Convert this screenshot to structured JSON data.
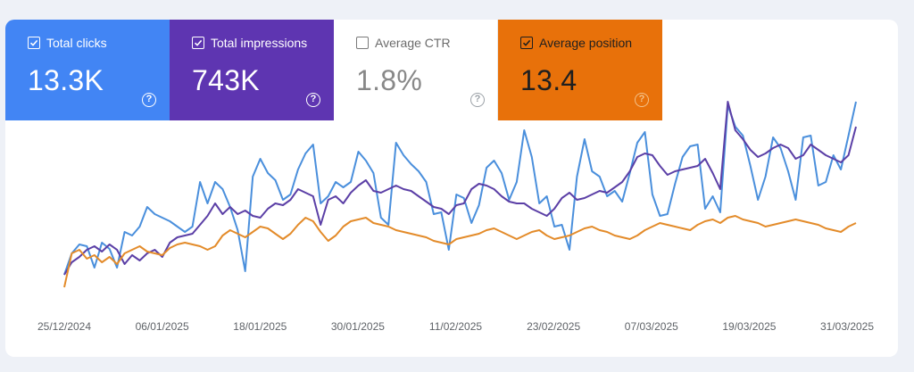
{
  "metrics": [
    {
      "label": "Total clicks",
      "value": "13.3K",
      "checked": true,
      "color": "#4285f4"
    },
    {
      "label": "Total impressions",
      "value": "743K",
      "checked": true,
      "color": "#5e35b1"
    },
    {
      "label": "Average CTR",
      "value": "1.8%",
      "checked": false,
      "color": "#ffffff"
    },
    {
      "label": "Average position",
      "value": "13.4",
      "checked": true,
      "color": "#e8710a"
    }
  ],
  "help_icon": "question-circle-icon",
  "chart_data": {
    "type": "line",
    "x_tick_labels": [
      "25/12/2024",
      "06/01/2025",
      "18/01/2025",
      "30/01/2025",
      "11/02/2025",
      "23/02/2025",
      "07/03/2025",
      "19/03/2025",
      "31/03/2025"
    ],
    "grid": false,
    "y_axis_visible": false,
    "series": [
      {
        "key": "clicks",
        "color": "#4a8fdc",
        "values": [
          16,
          40,
          50,
          48,
          24,
          52,
          45,
          24,
          64,
          60,
          70,
          92,
          84,
          80,
          76,
          70,
          64,
          70,
          120,
          96,
          120,
          112,
          92,
          66,
          20,
          126,
          146,
          130,
          122,
          100,
          106,
          134,
          152,
          162,
          96,
          104,
          120,
          114,
          120,
          154,
          144,
          130,
          80,
          72,
          164,
          150,
          140,
          132,
          120,
          84,
          86,
          44,
          106,
          102,
          74,
          94,
          136,
          144,
          130,
          100,
          120,
          178,
          148,
          96,
          104,
          70,
          72,
          44,
          126,
          168,
          132,
          126,
          104,
          110,
          98,
          130,
          164,
          176,
          106,
          82,
          84,
          118,
          148,
          160,
          162,
          90,
          104,
          86,
          206,
          182,
          172,
          138,
          100,
          126,
          170,
          158,
          132,
          100,
          170,
          172,
          116,
          120,
          150,
          134,
          172,
          210
        ]
      },
      {
        "key": "impressions",
        "color": "#5b3fa6",
        "values": [
          16,
          30,
          36,
          44,
          48,
          42,
          50,
          44,
          28,
          38,
          32,
          40,
          44,
          36,
          52,
          58,
          60,
          62,
          72,
          82,
          96,
          84,
          92,
          84,
          88,
          82,
          80,
          90,
          96,
          94,
          100,
          112,
          108,
          104,
          72,
          100,
          104,
          96,
          108,
          116,
          122,
          110,
          108,
          112,
          116,
          112,
          110,
          104,
          98,
          92,
          90,
          84,
          94,
          96,
          112,
          118,
          116,
          112,
          104,
          98,
          96,
          96,
          90,
          86,
          82,
          90,
          102,
          108,
          100,
          102,
          106,
          110,
          108,
          114,
          120,
          132,
          148,
          152,
          150,
          138,
          128,
          132,
          134,
          136,
          138,
          146,
          130,
          112,
          210,
          178,
          168,
          156,
          148,
          152,
          158,
          162,
          158,
          146,
          150,
          162,
          156,
          150,
          146,
          142,
          150,
          182
        ]
      },
      {
        "key": "position",
        "color": "#e38b2a",
        "values": [
          2,
          40,
          44,
          34,
          38,
          30,
          36,
          28,
          40,
          44,
          48,
          42,
          40,
          38,
          46,
          50,
          52,
          50,
          48,
          44,
          48,
          60,
          66,
          62,
          58,
          64,
          70,
          68,
          62,
          56,
          62,
          72,
          80,
          76,
          64,
          54,
          60,
          70,
          76,
          78,
          80,
          74,
          72,
          70,
          66,
          64,
          62,
          60,
          58,
          54,
          52,
          50,
          56,
          58,
          60,
          62,
          66,
          68,
          64,
          60,
          56,
          60,
          64,
          66,
          60,
          56,
          58,
          60,
          64,
          68,
          70,
          66,
          64,
          60,
          58,
          56,
          60,
          66,
          70,
          74,
          72,
          70,
          68,
          66,
          72,
          76,
          78,
          74,
          80,
          82,
          78,
          76,
          74,
          70,
          72,
          74,
          76,
          78,
          76,
          74,
          72,
          68,
          66,
          64,
          70,
          74
        ]
      }
    ]
  }
}
